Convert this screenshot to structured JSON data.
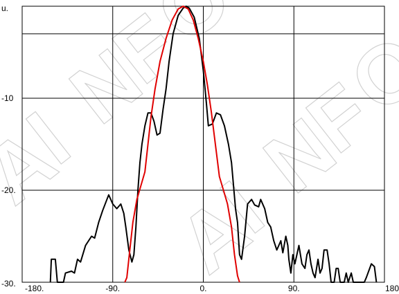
{
  "chart_data": {
    "type": "line",
    "title": "",
    "ylabel": "u.",
    "xlabel": "",
    "xlim": [
      -180,
      180
    ],
    "ylim": [
      -30,
      0
    ],
    "grid": true,
    "watermark": "AINFO",
    "x_ticks": [
      {
        "value": -180,
        "label": "-180."
      },
      {
        "value": -90,
        "label": "-90."
      },
      {
        "value": 0,
        "label": "0."
      },
      {
        "value": 90,
        "label": "90."
      },
      {
        "value": 180,
        "label": "180"
      }
    ],
    "y_ticks": [
      {
        "value": -10,
        "label": "-10"
      },
      {
        "value": -20,
        "label": "-20."
      },
      {
        "value": -30,
        "label": "-30."
      }
    ],
    "y_extra_gridline": -3,
    "series": [
      {
        "color": "#000000",
        "points": [
          [
            -152,
            -30
          ],
          [
            -151,
            -27.5
          ],
          [
            -147,
            -27.5
          ],
          [
            -145,
            -30
          ],
          [
            -139,
            -30
          ],
          [
            -137,
            -29
          ],
          [
            -131,
            -28.8
          ],
          [
            -128,
            -29
          ],
          [
            -125,
            -27.5
          ],
          [
            -122,
            -27.8
          ],
          [
            -117,
            -26
          ],
          [
            -111,
            -25
          ],
          [
            -108,
            -25.2
          ],
          [
            -104,
            -23.5
          ],
          [
            -100,
            -22.2
          ],
          [
            -94,
            -20.5
          ],
          [
            -90,
            -21.5
          ],
          [
            -86,
            -22
          ],
          [
            -82,
            -21.5
          ],
          [
            -79,
            -22.5
          ],
          [
            -77,
            -24
          ],
          [
            -74,
            -26.5
          ],
          [
            -71,
            -27.8
          ],
          [
            -69,
            -27
          ],
          [
            -67,
            -24
          ],
          [
            -65,
            -20
          ],
          [
            -63,
            -17
          ],
          [
            -61,
            -15
          ],
          [
            -58,
            -13
          ],
          [
            -55,
            -11.6
          ],
          [
            -52,
            -11.6
          ],
          [
            -49,
            -12.5
          ],
          [
            -46,
            -14
          ],
          [
            -43,
            -13.8
          ],
          [
            -40,
            -11.2
          ],
          [
            -37,
            -9
          ],
          [
            -34,
            -6
          ],
          [
            -30,
            -3
          ],
          [
            -25,
            -1
          ],
          [
            -20,
            -0.2
          ],
          [
            -17,
            0
          ],
          [
            -14,
            -0.2
          ],
          [
            -9,
            -1.2
          ],
          [
            -4,
            -3.5
          ],
          [
            0,
            -7
          ],
          [
            3,
            -10.5
          ],
          [
            5,
            -13
          ],
          [
            9,
            -12.8
          ],
          [
            13,
            -11.6
          ],
          [
            17,
            -11.8
          ],
          [
            21,
            -13
          ],
          [
            25,
            -15
          ],
          [
            28,
            -17
          ],
          [
            30,
            -19.5
          ],
          [
            32,
            -22
          ],
          [
            34,
            -23.5
          ],
          [
            36,
            -27
          ],
          [
            38,
            -27.5
          ],
          [
            41,
            -25
          ],
          [
            44,
            -21.5
          ],
          [
            48,
            -21
          ],
          [
            51,
            -21.6
          ],
          [
            55,
            -21.8
          ],
          [
            57,
            -21
          ],
          [
            61,
            -22
          ],
          [
            64,
            -23.5
          ],
          [
            67,
            -24
          ],
          [
            70,
            -25.5
          ],
          [
            73,
            -26.5
          ],
          [
            77,
            -25.5
          ],
          [
            79,
            -26.8
          ],
          [
            82,
            -25
          ],
          [
            84,
            -26
          ],
          [
            85,
            -27.5
          ],
          [
            87,
            -29
          ],
          [
            89,
            -27
          ],
          [
            91,
            -28
          ],
          [
            95,
            -26
          ],
          [
            98,
            -28
          ],
          [
            101,
            -28.5
          ],
          [
            103,
            -27
          ],
          [
            105,
            -26.5
          ],
          [
            107,
            -28
          ],
          [
            109,
            -29
          ],
          [
            111,
            -29.5
          ],
          [
            114,
            -27.5
          ],
          [
            116,
            -29
          ],
          [
            118,
            -28.5
          ],
          [
            120,
            -26.5
          ],
          [
            123,
            -26.5
          ],
          [
            125,
            -28
          ],
          [
            127,
            -30
          ],
          [
            130,
            -30
          ],
          [
            132,
            -28.5
          ],
          [
            134,
            -28.5
          ],
          [
            136,
            -30
          ],
          [
            140,
            -30
          ],
          [
            142,
            -29
          ],
          [
            144,
            -30
          ],
          [
            147,
            -29
          ],
          [
            149,
            -30
          ],
          [
            160,
            -30
          ],
          [
            162,
            -29.5
          ],
          [
            167,
            -28
          ],
          [
            170,
            -28.3
          ],
          [
            172,
            -30
          ]
        ]
      },
      {
        "color": "#e00000",
        "points": [
          [
            -78,
            -30
          ],
          [
            -76,
            -29.5
          ],
          [
            -73,
            -26.5
          ],
          [
            -70,
            -23.5
          ],
          [
            -66,
            -21
          ],
          [
            -62,
            -19.5
          ],
          [
            -58,
            -18
          ],
          [
            -55,
            -15
          ],
          [
            -52,
            -12
          ],
          [
            -48,
            -9
          ],
          [
            -43,
            -6
          ],
          [
            -37,
            -3.5
          ],
          [
            -31,
            -1.5
          ],
          [
            -25,
            -0.3
          ],
          [
            -20,
            0
          ],
          [
            -15,
            -0.3
          ],
          [
            -10,
            -1.5
          ],
          [
            -5,
            -3.5
          ],
          [
            0,
            -6
          ],
          [
            4,
            -8.5
          ],
          [
            8,
            -11.5
          ],
          [
            12,
            -15
          ],
          [
            16,
            -18.5
          ],
          [
            20,
            -20
          ],
          [
            24,
            -21.5
          ],
          [
            28,
            -24
          ],
          [
            31,
            -27
          ],
          [
            34,
            -29.3
          ],
          [
            36,
            -30
          ]
        ]
      }
    ]
  }
}
